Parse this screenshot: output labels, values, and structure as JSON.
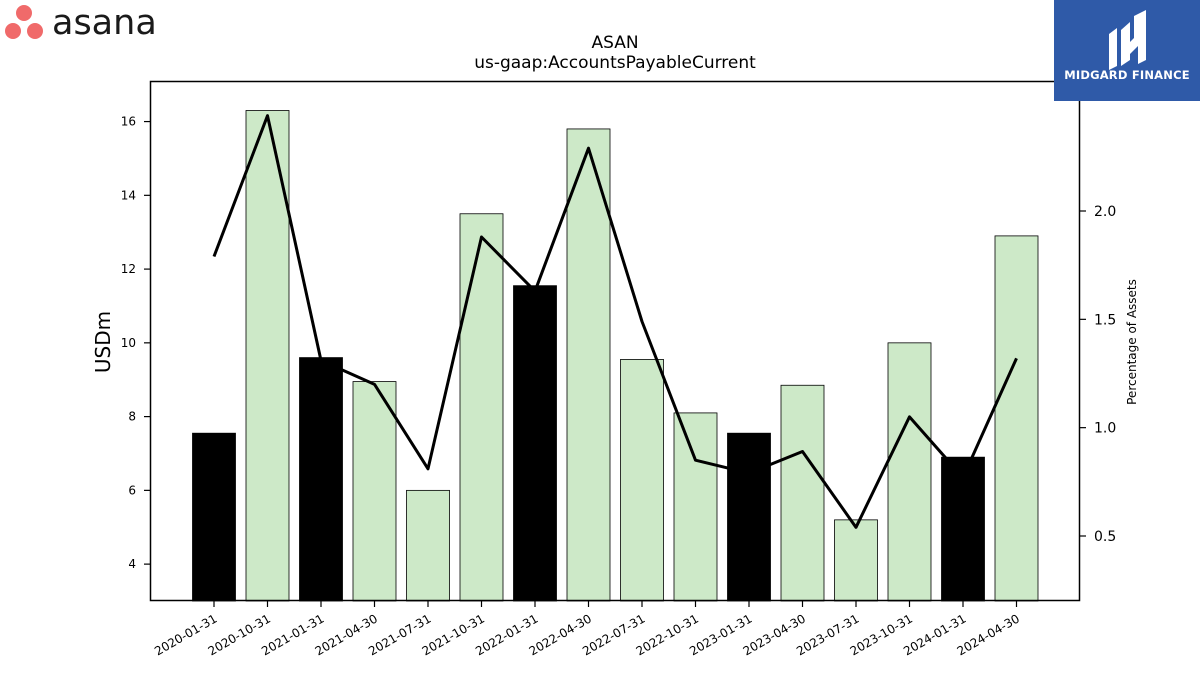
{
  "logos": {
    "left_brand": "asana",
    "right_brand": "MIDGARD FINANCE"
  },
  "chart_data": {
    "type": "bar",
    "title": "ASAN",
    "subtitle": "us-gaap:AccountsPayableCurrent",
    "ylabel": "USDm",
    "y2label": "Percentage of Assets",
    "ylim": [
      3.0,
      17.1
    ],
    "y2lim": [
      0.2,
      2.6
    ],
    "yticks": [
      4,
      6,
      8,
      10,
      12,
      14,
      16
    ],
    "y2ticks": [
      0.5,
      1.0,
      1.5,
      2.0
    ],
    "categories": [
      "2020-01-31",
      "2020-10-31",
      "2021-01-31",
      "2021-04-30",
      "2021-07-31",
      "2021-10-31",
      "2022-01-31",
      "2022-04-30",
      "2022-07-31",
      "2022-10-31",
      "2023-01-31",
      "2023-04-30",
      "2023-07-31",
      "2023-10-31",
      "2024-01-31",
      "2024-04-30"
    ],
    "series": [
      {
        "kind": "bar",
        "axis": "left",
        "values": [
          7.55,
          16.3,
          9.6,
          8.95,
          6.0,
          13.5,
          11.55,
          15.8,
          9.55,
          8.1,
          7.55,
          8.85,
          5.2,
          10.0,
          6.9,
          12.9
        ],
        "fill_colors": [
          "#000000",
          "#cde9c8",
          "#000000",
          "#cde9c8",
          "#cde9c8",
          "#cde9c8",
          "#000000",
          "#cde9c8",
          "#cde9c8",
          "#cde9c8",
          "#000000",
          "#cde9c8",
          "#cde9c8",
          "#cde9c8",
          "#000000",
          "#cde9c8"
        ]
      },
      {
        "kind": "line",
        "axis": "right",
        "color": "#000000",
        "values": [
          1.79,
          2.44,
          1.31,
          1.2,
          0.81,
          1.88,
          1.63,
          2.29,
          1.49,
          0.85,
          0.79,
          0.89,
          0.54,
          1.05,
          0.77,
          1.32
        ]
      }
    ],
    "grid": false,
    "legend": "none"
  }
}
